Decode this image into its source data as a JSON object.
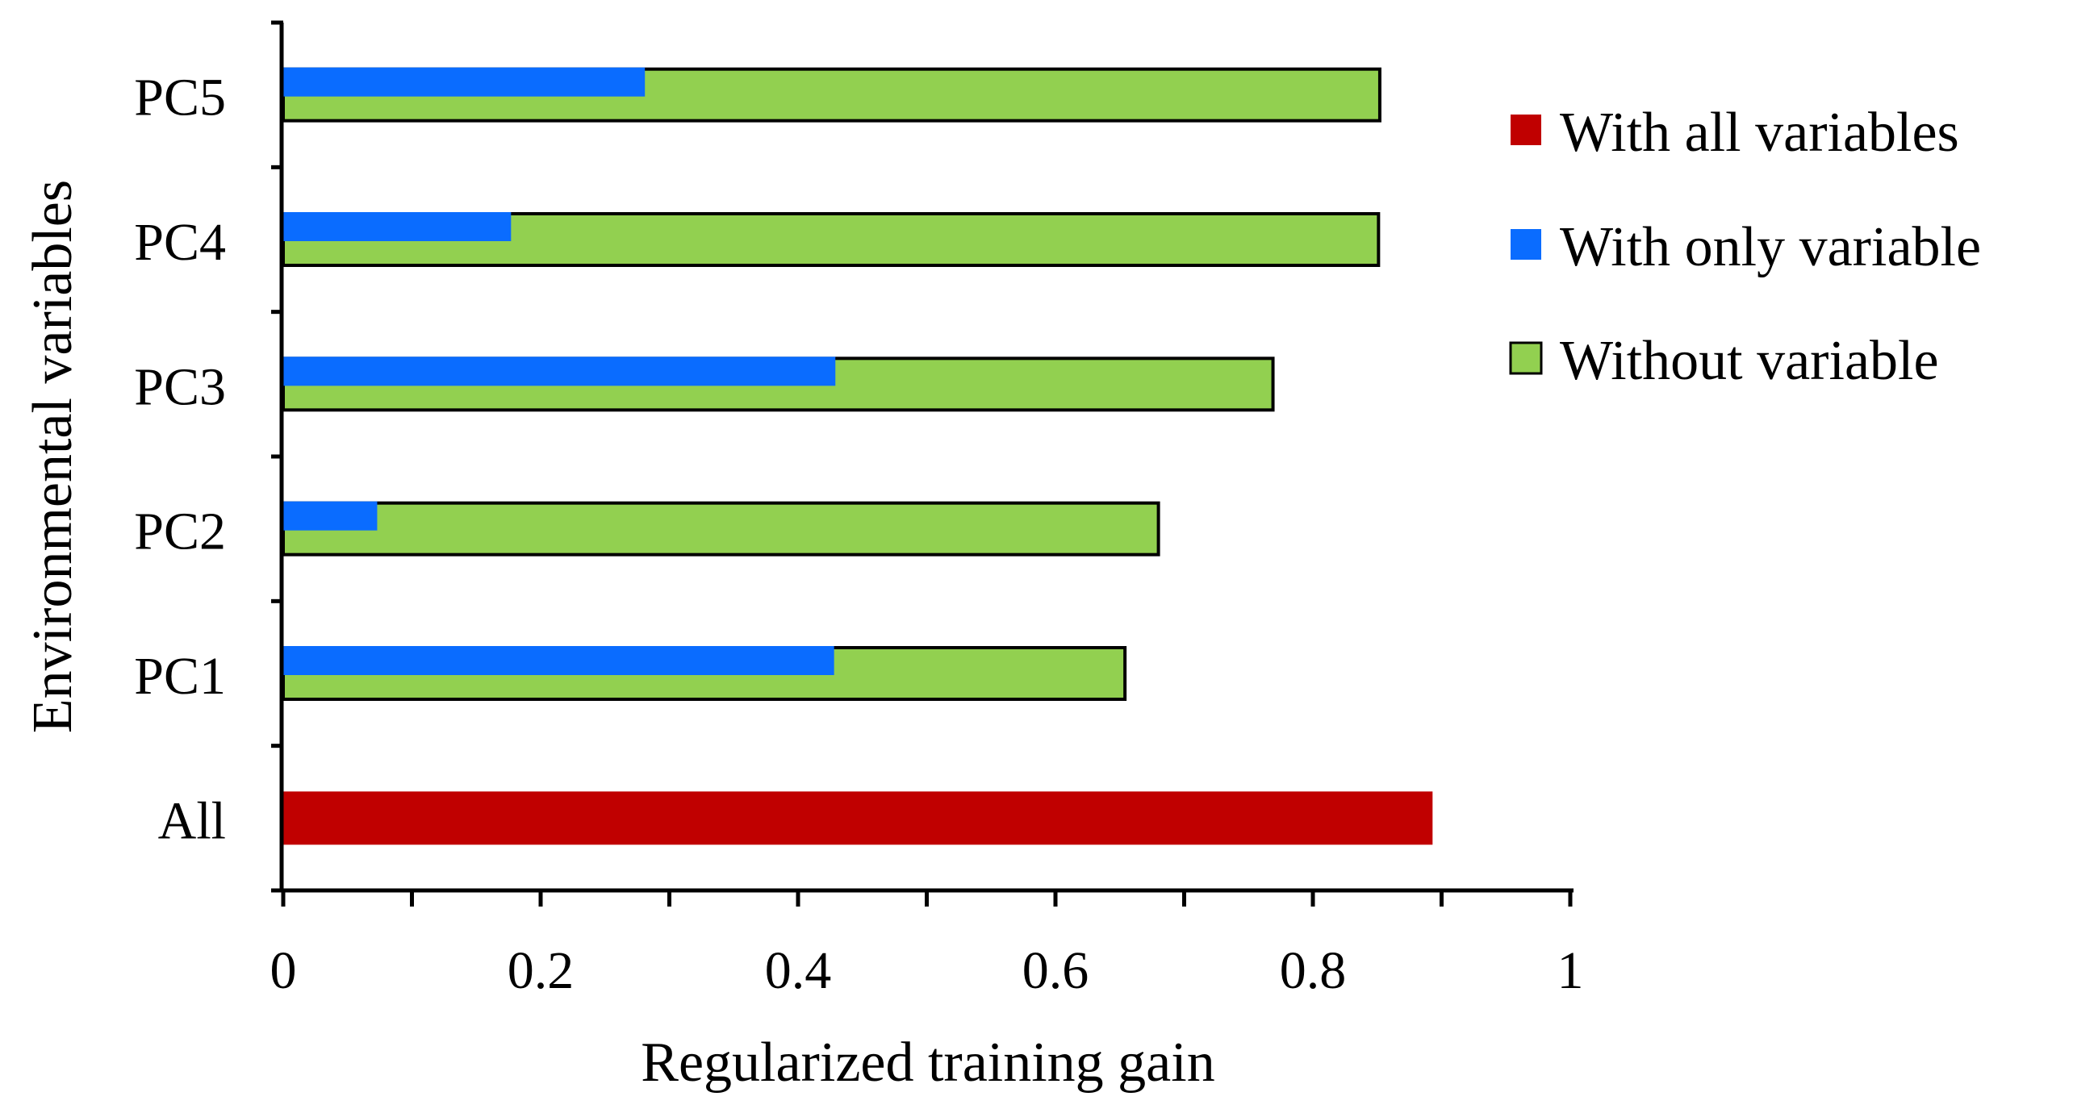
{
  "chart_data": {
    "type": "bar",
    "orientation": "horizontal",
    "title": "",
    "xlabel": "Regularized training gain",
    "ylabel": "Environmental variables",
    "xlim": [
      0,
      1
    ],
    "xticks": [
      0,
      0.1,
      0.2,
      0.3,
      0.4,
      0.5,
      0.6,
      0.7,
      0.8,
      0.9,
      1.0
    ],
    "xtick_labels": [
      "0",
      "0.2",
      "0.4",
      "0.6",
      "0.8",
      "1"
    ],
    "grid": false,
    "legend_position": "right",
    "categories": [
      "All",
      "PC1",
      "PC2",
      "PC3",
      "PC4",
      "PC5"
    ],
    "series": [
      {
        "name": "With all variables",
        "color": "#c00000",
        "values": [
          0.893,
          null,
          null,
          null,
          null,
          null
        ]
      },
      {
        "name": "With only variable",
        "color": "#0a6cff",
        "values": [
          null,
          0.428,
          0.073,
          0.429,
          0.177,
          0.281
        ]
      },
      {
        "name": "Without variable",
        "color": "#92d050",
        "values": [
          null,
          0.654,
          0.68,
          0.769,
          0.851,
          0.852
        ]
      }
    ]
  }
}
